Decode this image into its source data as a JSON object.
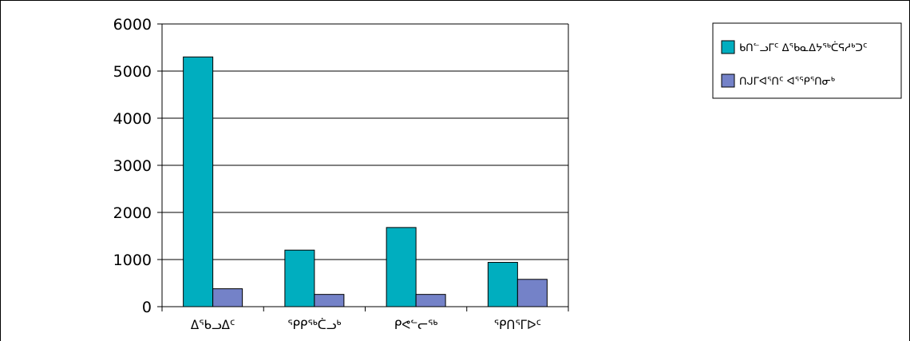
{
  "chart_data": {
    "type": "bar",
    "categories": [
      "ᐃᖃᓗᐃᑦ",
      "ᕿᑭᖅᑖᓗᒃ",
      "ᑭᕙᓪᓕᖅ",
      "ᕿᑎᕐᒥᐅᑦ"
    ],
    "series": [
      {
        "name": "ᑲᑎᓪᓗᒥᑦ ᐃᖃᓇᐃᔭᖅᑖᕋᓱᒃᑐᑦ",
        "values": [
          5300,
          1200,
          1680,
          940
        ]
      },
      {
        "name": "ᑎᒍᒥᐊᕐᑎᑦ ᐊᕐᕿᕐᑎᓂᒃ",
        "values": [
          380,
          260,
          260,
          580
        ]
      }
    ],
    "ylim": [
      0,
      6000
    ],
    "yticks": [
      0,
      1000,
      2000,
      3000,
      4000,
      5000,
      6000
    ],
    "grid": true,
    "legend": "top-right",
    "colors": {
      "series_0": "#00AEBF",
      "series_1": "#7482C8",
      "grid": "#000000",
      "border": "#000000"
    }
  }
}
